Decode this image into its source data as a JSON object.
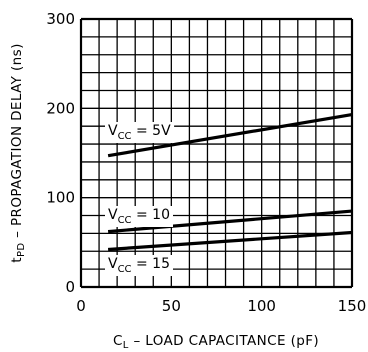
{
  "chart_data": {
    "type": "line",
    "xlabel": {
      "main": "C",
      "sub": "L",
      "rest": " – LOAD CAPACITANCE (pF)"
    },
    "ylabel": {
      "main": "t",
      "sub": "PD",
      "rest": " – PROPAGATION DELAY (ns)"
    },
    "xlim": [
      0,
      150
    ],
    "ylim": [
      0,
      300
    ],
    "x_ticks": [
      0,
      50,
      100,
      150
    ],
    "y_ticks": [
      0,
      100,
      200,
      300
    ],
    "x_tick_labels": [
      "0",
      "50",
      "100",
      "150"
    ],
    "y_tick_labels": [
      "0",
      "100",
      "200",
      "300"
    ],
    "grid": {
      "x_minor_step": 10,
      "y_minor_step": 20,
      "enabled": true
    },
    "series": [
      {
        "name": "V",
        "name_sub": "CC",
        "name_rest": " = 5V",
        "x": [
          15,
          150
        ],
        "y": [
          147,
          193
        ]
      },
      {
        "name": "V",
        "name_sub": "CC",
        "name_rest": " = 10",
        "x": [
          15,
          150
        ],
        "y": [
          62,
          85
        ]
      },
      {
        "name": "V",
        "name_sub": "CC",
        "name_rest": " = 15",
        "x": [
          15,
          150
        ],
        "y": [
          42,
          61
        ]
      }
    ]
  }
}
